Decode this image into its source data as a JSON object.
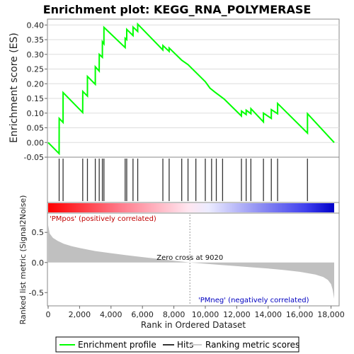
{
  "chart_data": {
    "type": "line",
    "title": "Enrichment plot: KEGG_RNA_POLYMERASE",
    "es_panel": {
      "ylabel": "Enrichment score (ES)",
      "ylim": [
        -0.05,
        0.42
      ],
      "yticks": [
        "-0.05",
        "0.00",
        "0.05",
        "0.10",
        "0.15",
        "0.20",
        "0.25",
        "0.30",
        "0.35",
        "0.40"
      ],
      "ytick_values": [
        -0.05,
        0.0,
        0.05,
        0.1,
        0.15,
        0.2,
        0.25,
        0.3,
        0.35,
        0.4
      ],
      "series": [
        {
          "name": "Enrichment profile",
          "color": "#00ff00",
          "points": [
            [
              0,
              0.0
            ],
            [
              700,
              -0.038
            ],
            [
              701,
              0.082
            ],
            [
              950,
              0.068
            ],
            [
              951,
              0.17
            ],
            [
              2200,
              0.102
            ],
            [
              2201,
              0.174
            ],
            [
              2500,
              0.158
            ],
            [
              2501,
              0.225
            ],
            [
              3000,
              0.198
            ],
            [
              3001,
              0.258
            ],
            [
              3250,
              0.243
            ],
            [
              3251,
              0.3
            ],
            [
              3450,
              0.29
            ],
            [
              3451,
              0.343
            ],
            [
              3550,
              0.336
            ],
            [
              3551,
              0.392
            ],
            [
              4900,
              0.323
            ],
            [
              4901,
              0.355
            ],
            [
              5000,
              0.35
            ],
            [
              5001,
              0.385
            ],
            [
              5400,
              0.364
            ],
            [
              5401,
              0.393
            ],
            [
              5700,
              0.378
            ],
            [
              5701,
              0.403
            ],
            [
              7300,
              0.315
            ],
            [
              7301,
              0.33
            ],
            [
              7700,
              0.31
            ],
            [
              7701,
              0.322
            ],
            [
              8500,
              0.28
            ],
            [
              8900,
              0.265
            ],
            [
              10000,
              0.207
            ],
            [
              10300,
              0.185
            ],
            [
              10600,
              0.172
            ],
            [
              10900,
              0.16
            ],
            [
              11200,
              0.148
            ],
            [
              12300,
              0.09
            ],
            [
              12301,
              0.107
            ],
            [
              12600,
              0.095
            ],
            [
              12601,
              0.11
            ],
            [
              12900,
              0.098
            ],
            [
              12901,
              0.115
            ],
            [
              13700,
              0.07
            ],
            [
              13701,
              0.1
            ],
            [
              14200,
              0.082
            ],
            [
              14201,
              0.112
            ],
            [
              14600,
              0.098
            ],
            [
              14601,
              0.133
            ],
            [
              16500,
              0.032
            ],
            [
              16501,
              0.098
            ],
            [
              18200,
              0.0
            ]
          ]
        }
      ],
      "hits": [
        700,
        950,
        2200,
        2500,
        3000,
        3250,
        3450,
        3550,
        4900,
        5000,
        5400,
        5700,
        7300,
        7700,
        8500,
        8900,
        9400,
        10000,
        10400,
        10700,
        11100,
        12300,
        12600,
        12900,
        13700,
        14200,
        14600,
        16500
      ]
    },
    "metric_panel": {
      "ylabel": "Ranked list metric (Signal2Noise)",
      "xlabel": "Rank in Ordered Dataset",
      "ylim": [
        -0.72,
        0.82
      ],
      "yticks": [
        "-0.5",
        "0.0",
        "0.5"
      ],
      "ytick_values": [
        -0.5,
        0.0,
        0.5
      ],
      "xticks": [
        "0",
        "2,000",
        "4,000",
        "6,000",
        "8,000",
        "10,000",
        "12,000",
        "14,000",
        "16,000",
        "18,000"
      ],
      "xtick_values": [
        0,
        2000,
        4000,
        6000,
        8000,
        10000,
        12000,
        14000,
        16000,
        18000
      ],
      "xlim": [
        0,
        18200
      ],
      "profile": [
        [
          0,
          0.62
        ],
        [
          100,
          0.48
        ],
        [
          300,
          0.41
        ],
        [
          600,
          0.36
        ],
        [
          1000,
          0.31
        ],
        [
          1500,
          0.27
        ],
        [
          2000,
          0.24
        ],
        [
          3000,
          0.19
        ],
        [
          4000,
          0.155
        ],
        [
          5000,
          0.12
        ],
        [
          6000,
          0.09
        ],
        [
          7000,
          0.06
        ],
        [
          8000,
          0.03
        ],
        [
          9020,
          0.0
        ],
        [
          10000,
          -0.02
        ],
        [
          11000,
          -0.04
        ],
        [
          12000,
          -0.06
        ],
        [
          13000,
          -0.08
        ],
        [
          14000,
          -0.1
        ],
        [
          15000,
          -0.125
        ],
        [
          16000,
          -0.155
        ],
        [
          17000,
          -0.2
        ],
        [
          17500,
          -0.24
        ],
        [
          17800,
          -0.29
        ],
        [
          18000,
          -0.36
        ],
        [
          18100,
          -0.45
        ],
        [
          18200,
          -0.6
        ]
      ],
      "zero_cross": 9020,
      "annotations": {
        "zero_cross": "Zero cross at 9020",
        "positive": "'PMpos' (positively correlated)",
        "negative": "'PMneg' (negatively correlated)"
      }
    },
    "legend": [
      "Enrichment profile",
      "Hits",
      "Ranking metric scores"
    ]
  }
}
